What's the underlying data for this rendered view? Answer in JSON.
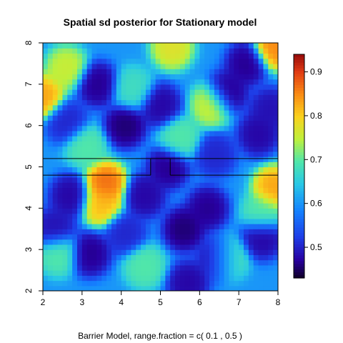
{
  "chart_data": {
    "type": "heatmap",
    "title": "Spatial sd posterior for Stationary model",
    "caption": "Barrier Model, range.fraction = c( 0.1 ,  0.5 )",
    "xlim": [
      2,
      8
    ],
    "ylim": [
      2,
      8
    ],
    "x_ticks": [
      "2",
      "3",
      "4",
      "5",
      "6",
      "7",
      "8"
    ],
    "y_ticks": [
      "2",
      "3",
      "4",
      "5",
      "6",
      "7",
      "8"
    ],
    "colorbar": {
      "range": [
        0.43,
        0.94
      ],
      "ticks": [
        "0.5",
        "0.6",
        "0.7",
        "0.8",
        "0.9"
      ],
      "tick_values": [
        0.5,
        0.6,
        0.7,
        0.8,
        0.9
      ]
    },
    "barrier": {
      "upper_y": 5.2,
      "lower_y": 4.8,
      "gap_x": [
        4.75,
        5.25
      ]
    },
    "hotspots": [
      {
        "x": 3.6,
        "y": 4.6,
        "value": 0.88
      },
      {
        "x": 3.5,
        "y": 4.1,
        "value": 0.82
      },
      {
        "x": 2.0,
        "y": 6.7,
        "value": 0.84
      },
      {
        "x": 7.9,
        "y": 7.9,
        "value": 0.86
      },
      {
        "x": 7.9,
        "y": 4.5,
        "value": 0.84
      },
      {
        "x": 6.3,
        "y": 6.5,
        "value": 0.76
      },
      {
        "x": 5.3,
        "y": 7.9,
        "value": 0.78
      },
      {
        "x": 2.6,
        "y": 7.4,
        "value": 0.76
      },
      {
        "x": 3.1,
        "y": 5.5,
        "value": 0.7
      },
      {
        "x": 5.5,
        "y": 5.7,
        "value": 0.7
      },
      {
        "x": 6.7,
        "y": 2.8,
        "value": 0.72
      },
      {
        "x": 4.6,
        "y": 2.6,
        "value": 0.7
      },
      {
        "x": 2.4,
        "y": 2.9,
        "value": 0.7
      },
      {
        "x": 7.6,
        "y": 3.9,
        "value": 0.7
      },
      {
        "x": 4.3,
        "y": 6.9,
        "value": 0.68
      }
    ],
    "lowspots": [
      {
        "x": 3.4,
        "y": 7.0,
        "value": 0.46
      },
      {
        "x": 4.1,
        "y": 6.0,
        "value": 0.45
      },
      {
        "x": 5.0,
        "y": 6.5,
        "value": 0.47
      },
      {
        "x": 6.7,
        "y": 6.8,
        "value": 0.46
      },
      {
        "x": 7.2,
        "y": 7.5,
        "value": 0.46
      },
      {
        "x": 7.5,
        "y": 5.8,
        "value": 0.47
      },
      {
        "x": 7.8,
        "y": 6.4,
        "value": 0.48
      },
      {
        "x": 5.2,
        "y": 5.0,
        "value": 0.46
      },
      {
        "x": 4.6,
        "y": 4.3,
        "value": 0.47
      },
      {
        "x": 5.6,
        "y": 3.5,
        "value": 0.45
      },
      {
        "x": 6.2,
        "y": 4.0,
        "value": 0.46
      },
      {
        "x": 6.5,
        "y": 2.8,
        "value": 0.45
      },
      {
        "x": 3.2,
        "y": 2.9,
        "value": 0.46
      },
      {
        "x": 2.7,
        "y": 4.3,
        "value": 0.47
      },
      {
        "x": 5.7,
        "y": 2.2,
        "value": 0.47
      },
      {
        "x": 2.3,
        "y": 3.5,
        "value": 0.48
      },
      {
        "x": 7.6,
        "y": 3.3,
        "value": 0.47
      },
      {
        "x": 2.6,
        "y": 6.1,
        "value": 0.5
      },
      {
        "x": 6.4,
        "y": 5.3,
        "value": 0.5
      },
      {
        "x": 4.1,
        "y": 3.4,
        "value": 0.5
      }
    ]
  }
}
